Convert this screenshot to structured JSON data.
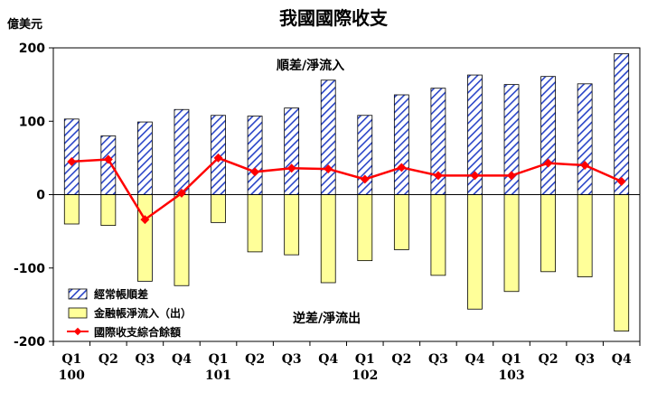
{
  "chart_data": {
    "type": "bar",
    "title": "我國國際收支",
    "ylabel": "億美元",
    "ylim": [
      -200,
      200
    ],
    "yticks": [
      200,
      100,
      0,
      -100,
      -200
    ],
    "categories": [
      "Q1",
      "Q2",
      "Q3",
      "Q4",
      "Q1",
      "Q2",
      "Q3",
      "Q4",
      "Q1",
      "Q2",
      "Q3",
      "Q4",
      "Q1",
      "Q2",
      "Q3",
      "Q4"
    ],
    "year_labels": [
      {
        "label": "100",
        "index": 0
      },
      {
        "label": "101",
        "index": 4
      },
      {
        "label": "102",
        "index": 8
      },
      {
        "label": "103",
        "index": 12
      }
    ],
    "series": [
      {
        "name": "經常帳順差",
        "kind": "bar",
        "color": "#3355cc",
        "values": [
          103,
          80,
          99,
          116,
          108,
          107,
          118,
          156,
          108,
          136,
          145,
          163,
          150,
          161,
          151,
          192
        ]
      },
      {
        "name": "金融帳淨流入（出）",
        "kind": "bar",
        "color": "#ffff99",
        "values": [
          -40,
          -42,
          -118,
          -124,
          -38,
          -78,
          -82,
          -120,
          -90,
          -75,
          -110,
          -156,
          -132,
          -105,
          -112,
          -186
        ]
      },
      {
        "name": "國際收支綜合餘額",
        "kind": "line",
        "color": "#ff0000",
        "values": [
          45,
          48,
          -34,
          2,
          50,
          31,
          36,
          35,
          21,
          37,
          26,
          26,
          26,
          43,
          40,
          18
        ]
      }
    ],
    "annotations": [
      "順差/淨流入",
      "逆差/淨流出"
    ],
    "legend_position": "bottom-left",
    "grid": false
  }
}
